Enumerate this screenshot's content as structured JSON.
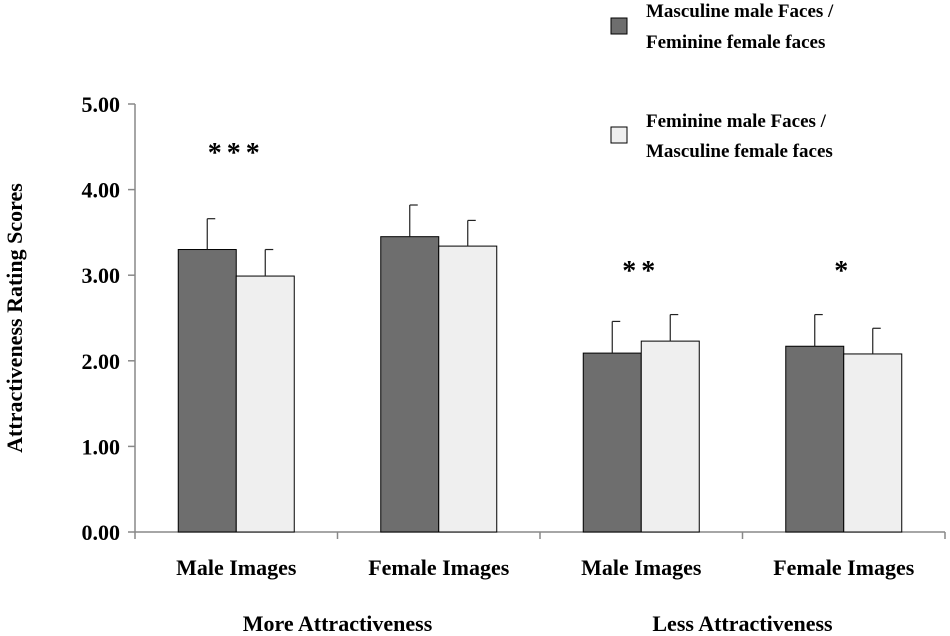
{
  "chart_data": {
    "type": "bar",
    "ylabel": "Attractiveness  Rating Scores",
    "ylim": [
      0,
      5
    ],
    "yticks": [
      0,
      1,
      2,
      3,
      4,
      5
    ],
    "ytick_labels": [
      "0.00",
      "1.00",
      "2.00",
      "3.00",
      "4.00",
      "5.00"
    ],
    "categories": [
      "Male Images",
      "Female Images",
      "Male Images",
      "Female Images"
    ],
    "groups": [
      {
        "label": "More Attractiveness",
        "categories": [
          0,
          1
        ]
      },
      {
        "label": "Less Attractiveness",
        "categories": [
          2,
          3
        ]
      }
    ],
    "series": [
      {
        "name": "Masculine male Faces / Feminine female faces",
        "legend_lines": [
          "Masculine male Faces /",
          "Feminine female faces"
        ],
        "color": "#6e6e6e",
        "values": [
          3.3,
          3.45,
          2.09,
          2.17
        ],
        "errors": [
          0.36,
          0.37,
          0.37,
          0.37
        ]
      },
      {
        "name": "Feminine male Faces / Masculine female faces",
        "legend_lines": [
          "Feminine male Faces /",
          "Masculine female faces"
        ],
        "color": "#efefef",
        "values": [
          2.99,
          3.34,
          2.23,
          2.08
        ],
        "errors": [
          0.31,
          0.3,
          0.31,
          0.3
        ]
      }
    ],
    "significance": [
      "***",
      "",
      "**",
      "*"
    ],
    "legend_position": "top-right",
    "grid": false
  }
}
